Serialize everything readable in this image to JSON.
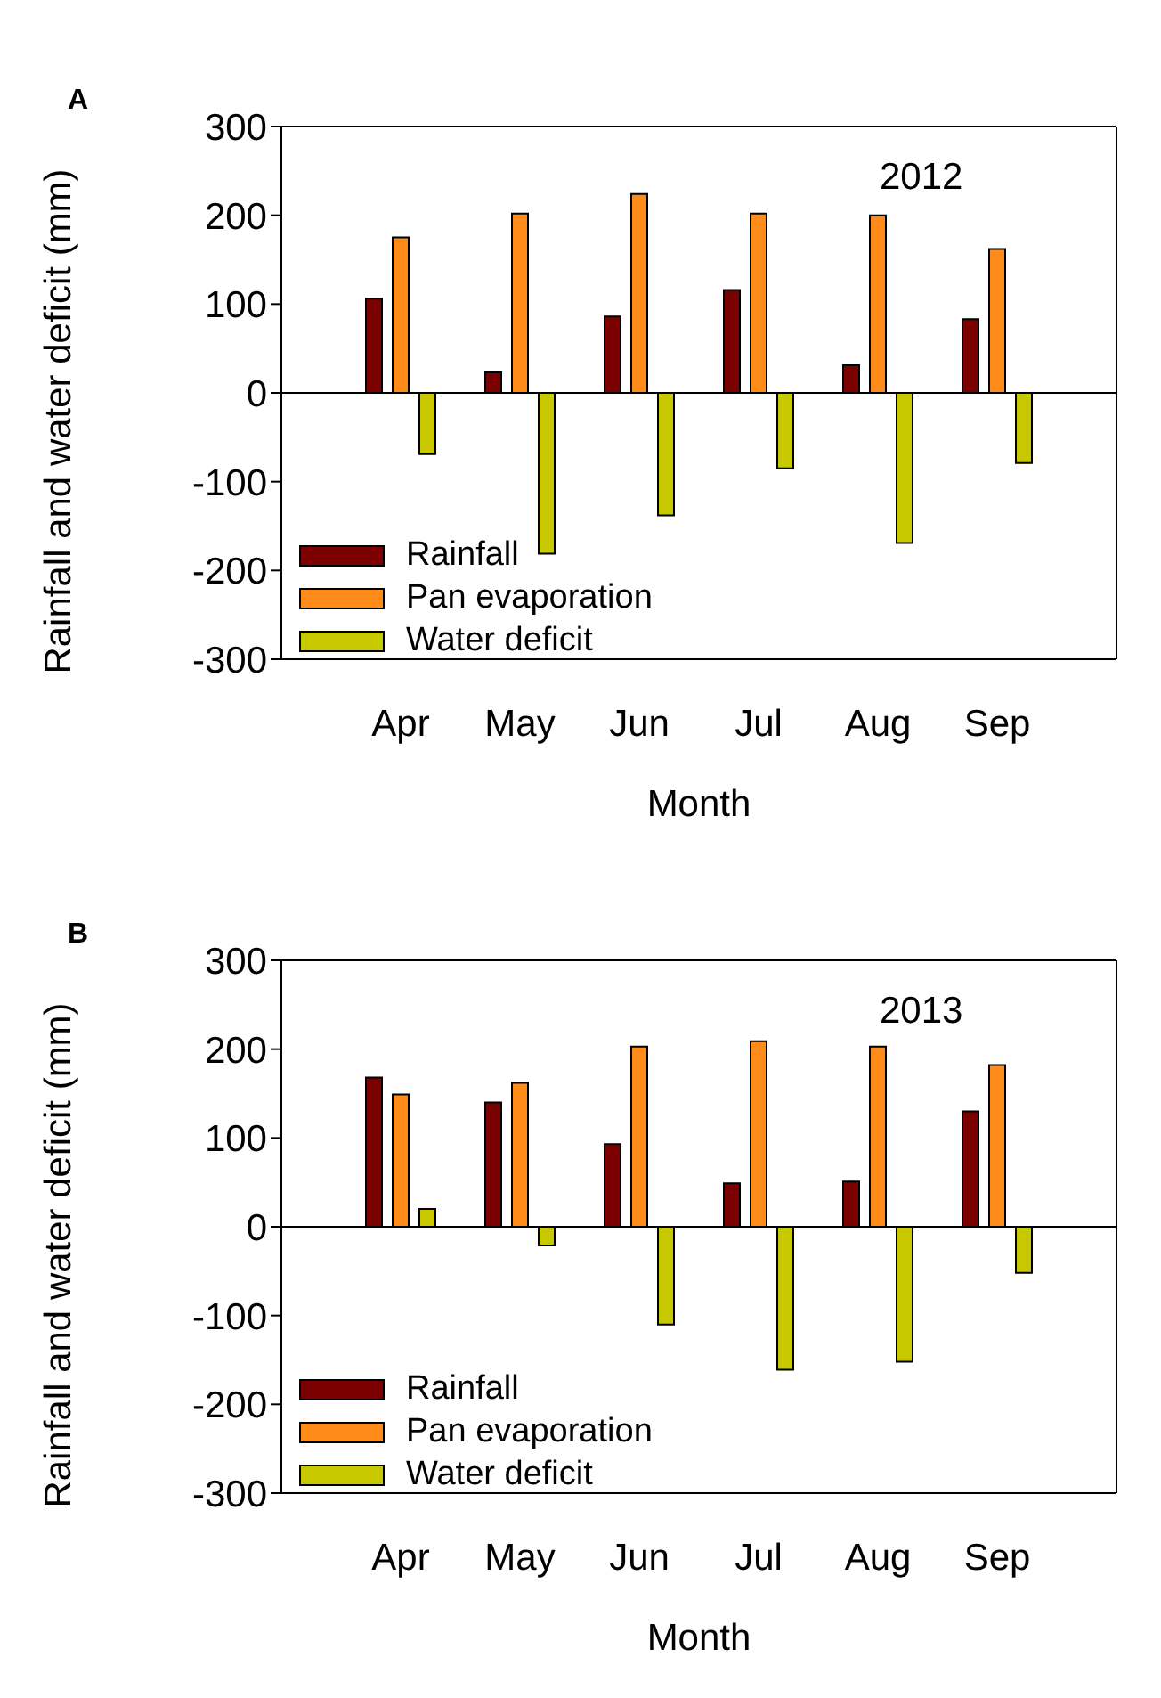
{
  "chart_data": [
    {
      "type": "bar",
      "title": "A",
      "annotations": [
        "2012"
      ],
      "xlabel": "Month",
      "ylabel": "Rainfall and water deficit (mm)",
      "categories": [
        "Apr",
        "May",
        "Jun",
        "Jul",
        "Aug",
        "Sep"
      ],
      "ylim": [
        -300,
        300
      ],
      "yticks": [
        -300,
        -200,
        -100,
        0,
        100,
        200,
        300
      ],
      "legend": "bottom left",
      "ref_lines": [
        {
          "axis": "y",
          "value": 0
        }
      ],
      "series": [
        {
          "name": "Rainfall",
          "color": "#7b0000",
          "values": [
            106,
            23,
            86,
            116,
            31,
            83
          ]
        },
        {
          "name": "Pan evaporation",
          "color": "#ff8c1a",
          "values": [
            175,
            202,
            224,
            202,
            200,
            162
          ]
        },
        {
          "name": "Water deficit",
          "color": "#c8c800",
          "values": [
            -69,
            -181,
            -138,
            -85,
            -169,
            -79
          ]
        }
      ]
    },
    {
      "type": "bar",
      "title": "B",
      "annotations": [
        "2013"
      ],
      "xlabel": "Month",
      "ylabel": "Rainfall and water deficit (mm)",
      "categories": [
        "Apr",
        "May",
        "Jun",
        "Jul",
        "Aug",
        "Sep"
      ],
      "ylim": [
        -300,
        300
      ],
      "yticks": [
        -300,
        -200,
        -100,
        0,
        100,
        200,
        300
      ],
      "legend": "bottom left",
      "ref_lines": [
        {
          "axis": "y",
          "value": 0
        }
      ],
      "series": [
        {
          "name": "Rainfall",
          "color": "#7b0000",
          "values": [
            168,
            140,
            93,
            49,
            51,
            130
          ]
        },
        {
          "name": "Pan evaporation",
          "color": "#ff8c1a",
          "values": [
            149,
            162,
            203,
            209,
            203,
            182
          ]
        },
        {
          "name": "Water deficit",
          "color": "#c8c800",
          "values": [
            20,
            -21,
            -110,
            -161,
            -152,
            -52
          ]
        }
      ]
    }
  ]
}
